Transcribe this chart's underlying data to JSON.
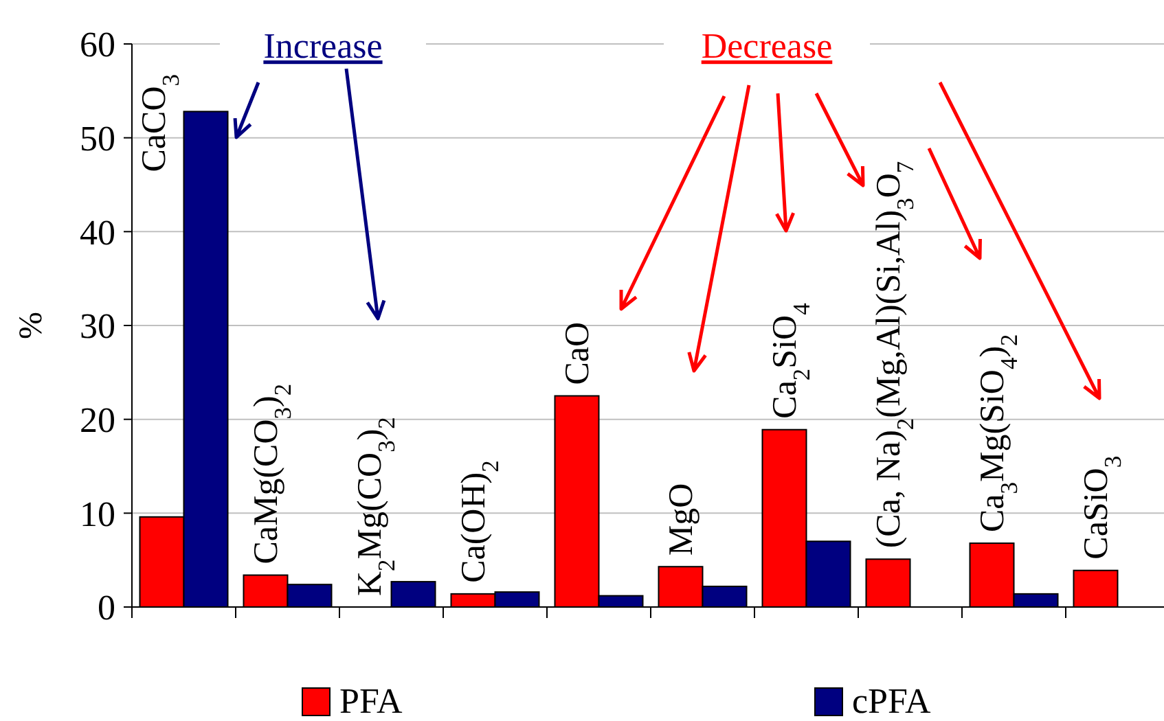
{
  "chart_data": {
    "type": "bar",
    "ylabel": "%",
    "categories": [
      "CaCO$_{3}$",
      "CaMg(CO$_{3}$)$_{2}$",
      "K$_{2}$Mg(CO$_{3}$)$_{2}$",
      "Ca(OH)$_{2}$",
      "CaO",
      "MgO",
      "Ca$_{2}$SiO$_{4}$",
      "(Ca, Na)$_{2}$(Mg,Al)(Si,Al)$_{3}$O$_{7}$",
      "Ca$_{3}$Mg(SiO$_{4}$)$_{2}$",
      "CaSiO$_{3}$"
    ],
    "series": [
      {
        "name": "PFA",
        "color": "#ff0000",
        "values": [
          9.6,
          3.4,
          null,
          1.4,
          22.5,
          4.3,
          18.9,
          5.1,
          6.8,
          3.9
        ]
      },
      {
        "name": "cPFA",
        "color": "#000080",
        "values": [
          52.8,
          2.4,
          2.7,
          1.6,
          1.2,
          2.2,
          7.0,
          null,
          1.4,
          null
        ]
      }
    ],
    "ylim": [
      0,
      60
    ],
    "yticks": [
      0,
      10,
      20,
      30,
      40,
      50,
      60
    ],
    "grid": "y",
    "legend": "bottom",
    "annotations": [
      "Increase",
      "Decrease"
    ]
  }
}
